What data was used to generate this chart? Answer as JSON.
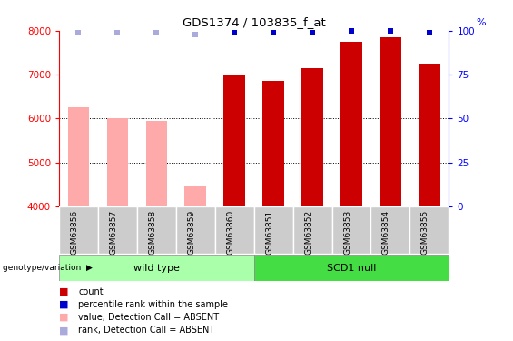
{
  "title": "GDS1374 / 103835_f_at",
  "samples": [
    "GSM63856",
    "GSM63857",
    "GSM63858",
    "GSM63859",
    "GSM63860",
    "GSM63851",
    "GSM63852",
    "GSM63853",
    "GSM63854",
    "GSM63855"
  ],
  "absent": [
    true,
    true,
    true,
    true,
    false,
    false,
    false,
    false,
    false,
    false
  ],
  "count_values": [
    6250,
    6000,
    5950,
    4480,
    7000,
    6850,
    7150,
    7750,
    7850,
    7250
  ],
  "rank_values": [
    99,
    99,
    99,
    98,
    99,
    99,
    99,
    101,
    102,
    99
  ],
  "bar_color_present": "#cc0000",
  "bar_color_absent": "#ffaaaa",
  "rank_color_present": "#0000cc",
  "rank_color_absent": "#aaaadd",
  "ylim_left": [
    4000,
    8000
  ],
  "ylim_right": [
    0,
    100
  ],
  "yticks_left": [
    4000,
    5000,
    6000,
    7000,
    8000
  ],
  "yticks_right": [
    0,
    25,
    50,
    75,
    100
  ],
  "group1_label": "wild type",
  "group2_label": "SCD1 null",
  "group1_color": "#aaffaa",
  "group2_color": "#44dd44",
  "genotype_label": "genotype/variation",
  "bar_width": 0.55,
  "legend_items": [
    {
      "symbol_color": "#cc0000",
      "label": "count"
    },
    {
      "symbol_color": "#0000cc",
      "label": "percentile rank within the sample"
    },
    {
      "symbol_color": "#ffaaaa",
      "label": "value, Detection Call = ABSENT"
    },
    {
      "symbol_color": "#aaaadd",
      "label": "rank, Detection Call = ABSENT"
    }
  ]
}
